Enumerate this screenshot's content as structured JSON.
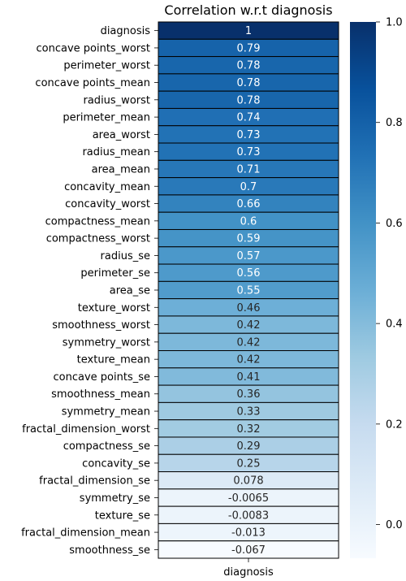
{
  "chart_data": {
    "type": "heatmap",
    "title": "Correlation w.r.t diagnosis",
    "x_categories": [
      "diagnosis"
    ],
    "colorbar": {
      "range": [
        -0.067,
        1.0
      ],
      "ticks": [
        0.0,
        0.2,
        0.4,
        0.6,
        0.8,
        1.0
      ],
      "tick_labels": [
        "0.0",
        "0.2",
        "0.4",
        "0.6",
        "0.8",
        "1.0"
      ],
      "colormap": "Blues"
    },
    "rows": [
      {
        "label": "diagnosis",
        "value": 1,
        "annot": "1"
      },
      {
        "label": "concave points_worst",
        "value": 0.79,
        "annot": "0.79"
      },
      {
        "label": "perimeter_worst",
        "value": 0.78,
        "annot": "0.78"
      },
      {
        "label": "concave points_mean",
        "value": 0.78,
        "annot": "0.78"
      },
      {
        "label": "radius_worst",
        "value": 0.78,
        "annot": "0.78"
      },
      {
        "label": "perimeter_mean",
        "value": 0.74,
        "annot": "0.74"
      },
      {
        "label": "area_worst",
        "value": 0.73,
        "annot": "0.73"
      },
      {
        "label": "radius_mean",
        "value": 0.73,
        "annot": "0.73"
      },
      {
        "label": "area_mean",
        "value": 0.71,
        "annot": "0.71"
      },
      {
        "label": "concavity_mean",
        "value": 0.7,
        "annot": "0.7"
      },
      {
        "label": "concavity_worst",
        "value": 0.66,
        "annot": "0.66"
      },
      {
        "label": "compactness_mean",
        "value": 0.6,
        "annot": "0.6"
      },
      {
        "label": "compactness_worst",
        "value": 0.59,
        "annot": "0.59"
      },
      {
        "label": "radius_se",
        "value": 0.57,
        "annot": "0.57"
      },
      {
        "label": "perimeter_se",
        "value": 0.56,
        "annot": "0.56"
      },
      {
        "label": "area_se",
        "value": 0.55,
        "annot": "0.55"
      },
      {
        "label": "texture_worst",
        "value": 0.46,
        "annot": "0.46"
      },
      {
        "label": "smoothness_worst",
        "value": 0.42,
        "annot": "0.42"
      },
      {
        "label": "symmetry_worst",
        "value": 0.42,
        "annot": "0.42"
      },
      {
        "label": "texture_mean",
        "value": 0.42,
        "annot": "0.42"
      },
      {
        "label": "concave points_se",
        "value": 0.41,
        "annot": "0.41"
      },
      {
        "label": "smoothness_mean",
        "value": 0.36,
        "annot": "0.36"
      },
      {
        "label": "symmetry_mean",
        "value": 0.33,
        "annot": "0.33"
      },
      {
        "label": "fractal_dimension_worst",
        "value": 0.32,
        "annot": "0.32"
      },
      {
        "label": "compactness_se",
        "value": 0.29,
        "annot": "0.29"
      },
      {
        "label": "concavity_se",
        "value": 0.25,
        "annot": "0.25"
      },
      {
        "label": "fractal_dimension_se",
        "value": 0.078,
        "annot": "0.078"
      },
      {
        "label": "symmetry_se",
        "value": -0.0065,
        "annot": "-0.0065"
      },
      {
        "label": "texture_se",
        "value": -0.0083,
        "annot": "-0.0083"
      },
      {
        "label": "fractal_dimension_mean",
        "value": -0.013,
        "annot": "-0.013"
      },
      {
        "label": "smoothness_se",
        "value": -0.067,
        "annot": "-0.067"
      }
    ]
  }
}
